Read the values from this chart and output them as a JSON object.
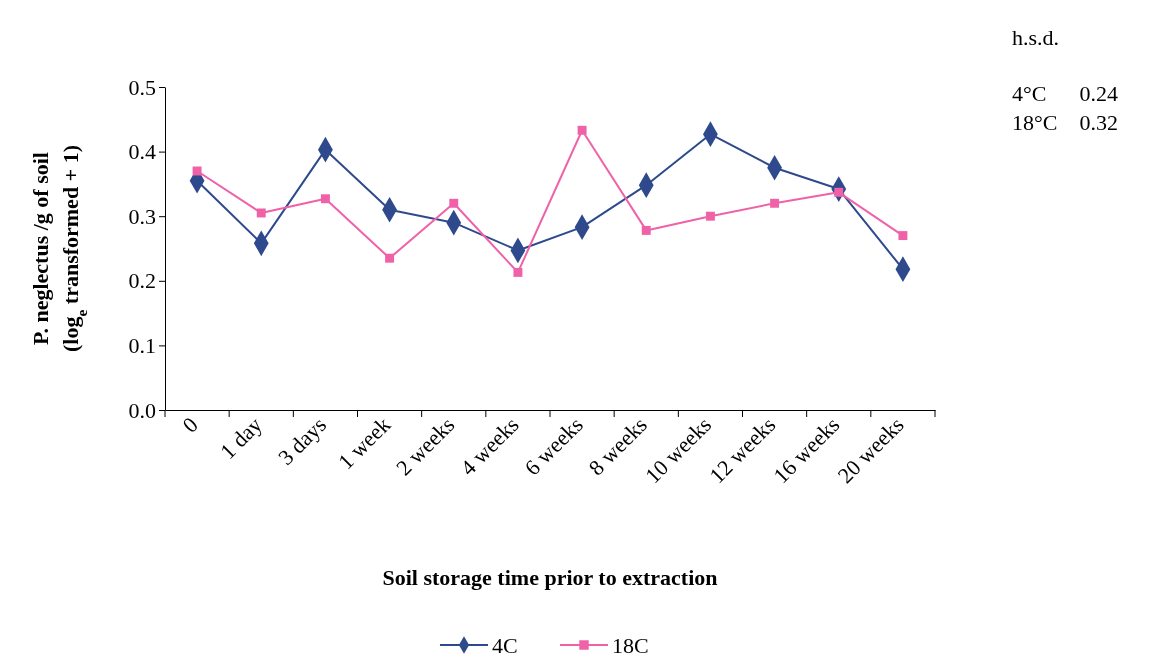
{
  "chart_data": {
    "type": "line",
    "xlabel": "Soil storage time prior to extraction",
    "ylabel": "P. neglectus /g of soil\n(log$_{e}$ transformed + 1)",
    "categories": [
      "0",
      "1 day",
      "3 days",
      "1 week",
      "2 weeks",
      "4 weeks",
      "6 weeks",
      "8 weeks",
      "10 weeks",
      "12 weeks",
      "16 weeks",
      "20 weeks"
    ],
    "series": [
      {
        "name": "4C",
        "color": "#2e4a8c",
        "marker": "diamond",
        "values": [
          0.355,
          0.258,
          0.403,
          0.31,
          0.29,
          0.247,
          0.283,
          0.348,
          0.427,
          0.375,
          0.342,
          0.218
        ]
      },
      {
        "name": "18C",
        "color": "#f062a8",
        "marker": "square",
        "values": [
          0.37,
          0.305,
          0.327,
          0.235,
          0.32,
          0.213,
          0.433,
          0.278,
          0.3,
          0.32,
          0.337,
          0.27
        ]
      }
    ],
    "ylim": [
      0,
      0.5
    ],
    "yticks": [
      {
        "value": 0,
        "label": "0.0"
      },
      0.1,
      0.2,
      0.3,
      0.4,
      0.5
    ],
    "annotations": [
      "h.s.d.",
      "4°C      0.24",
      "18°C    0.32"
    ],
    "legend": "bottom",
    "grid": false
  }
}
